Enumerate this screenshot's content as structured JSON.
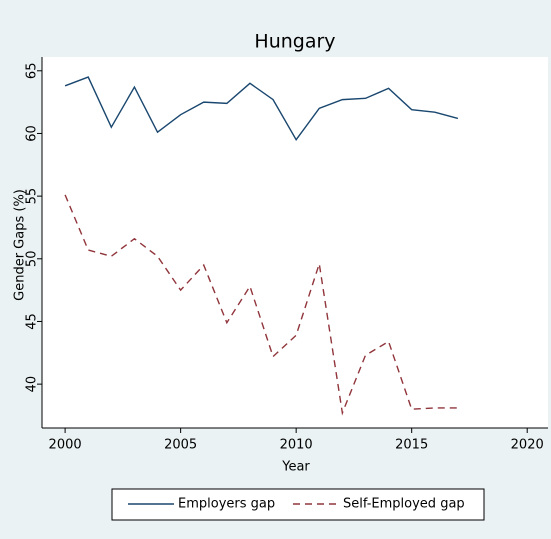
{
  "chart_data": {
    "type": "line",
    "title": "Hungary",
    "x_label": "Year",
    "y_label": "Gender Gaps (%)",
    "x": [
      2000,
      2001,
      2002,
      2003,
      2004,
      2005,
      2006,
      2007,
      2008,
      2009,
      2010,
      2011,
      2012,
      2013,
      2014,
      2015,
      2016,
      2017
    ],
    "series": [
      {
        "name": "Employers gap",
        "color": "#1a476f",
        "dash": false,
        "values": [
          63.8,
          64.5,
          60.5,
          63.7,
          60.1,
          61.5,
          62.5,
          62.4,
          64.0,
          62.7,
          59.5,
          62.0,
          62.7,
          62.8,
          63.6,
          61.9,
          61.7,
          61.2
        ]
      },
      {
        "name": "Self-Employed gap",
        "color": "#90353b",
        "dash": true,
        "values": [
          55.1,
          50.7,
          50.2,
          51.6,
          50.2,
          47.5,
          49.5,
          44.9,
          47.8,
          42.2,
          43.9,
          49.6,
          37.7,
          42.3,
          43.4,
          38.0,
          38.1,
          38.1
        ]
      }
    ],
    "xlim": [
      1999,
      2020.9
    ],
    "xticks": [
      2000,
      2005,
      2010,
      2015,
      2020
    ],
    "ylim": [
      36.5,
      66.1
    ],
    "yticks": [
      40,
      45,
      50,
      55,
      60,
      65
    ],
    "grid": false,
    "legend": "bottom"
  }
}
